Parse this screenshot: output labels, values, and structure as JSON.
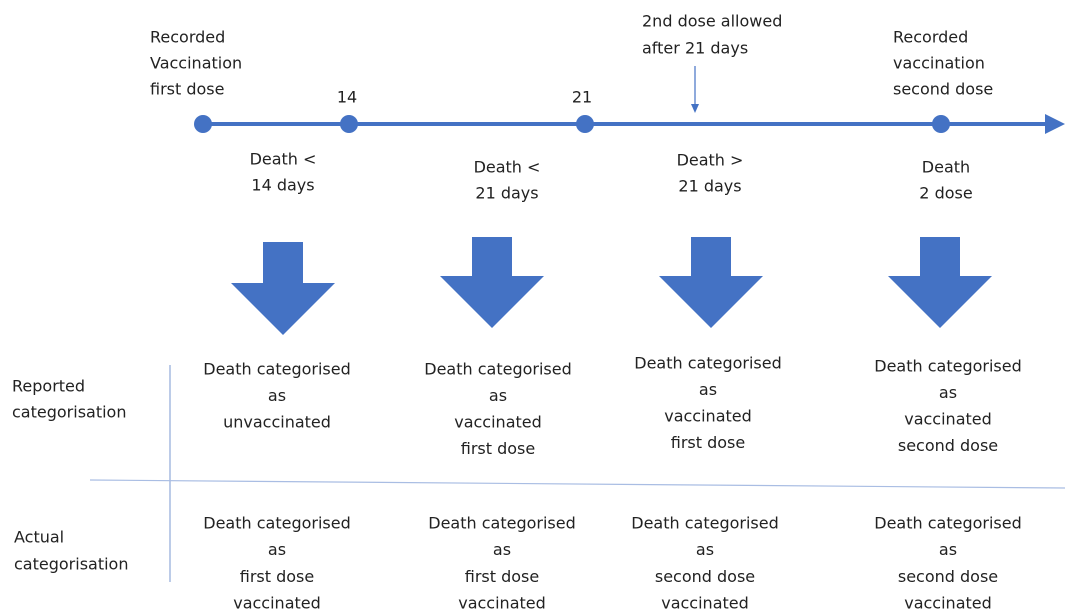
{
  "timeline": {
    "points": [
      {
        "label": [
          "Recorded",
          "Vaccination",
          "first dose"
        ]
      },
      {
        "label": [
          "14"
        ]
      },
      {
        "label": [
          "21"
        ]
      },
      {
        "label": [
          "Recorded",
          "vaccination",
          "second dose"
        ]
      }
    ],
    "annotation": [
      "2nd dose allowed",
      "after 21 days"
    ]
  },
  "rows": [
    {
      "label": [
        "Reported",
        "categorisation"
      ]
    },
    {
      "label": [
        "Actual",
        "categorisation"
      ]
    }
  ],
  "columns": [
    {
      "death": [
        "Death <",
        "14 days"
      ],
      "reported": [
        "Death categorised",
        "as",
        "unvaccinated"
      ],
      "actual": [
        "Death categorised",
        "as",
        "first dose",
        "vaccinated"
      ]
    },
    {
      "death": [
        "Death <",
        "21 days"
      ],
      "reported": [
        "Death categorised",
        "as",
        "vaccinated",
        "first dose"
      ],
      "actual": [
        "Death categorised",
        "as",
        "first dose",
        "vaccinated"
      ]
    },
    {
      "death": [
        "Death >",
        "21 days"
      ],
      "reported": [
        "Death categorised",
        "as",
        "vaccinated",
        "first dose"
      ],
      "actual": [
        "Death categorised",
        "as",
        "second dose",
        "vaccinated"
      ]
    },
    {
      "death": [
        "Death",
        "2 dose"
      ],
      "reported": [
        "Death categorised",
        "as",
        "vaccinated",
        "second dose"
      ],
      "actual": [
        "Death categorised",
        "as",
        "second dose",
        "vaccinated"
      ]
    }
  ]
}
